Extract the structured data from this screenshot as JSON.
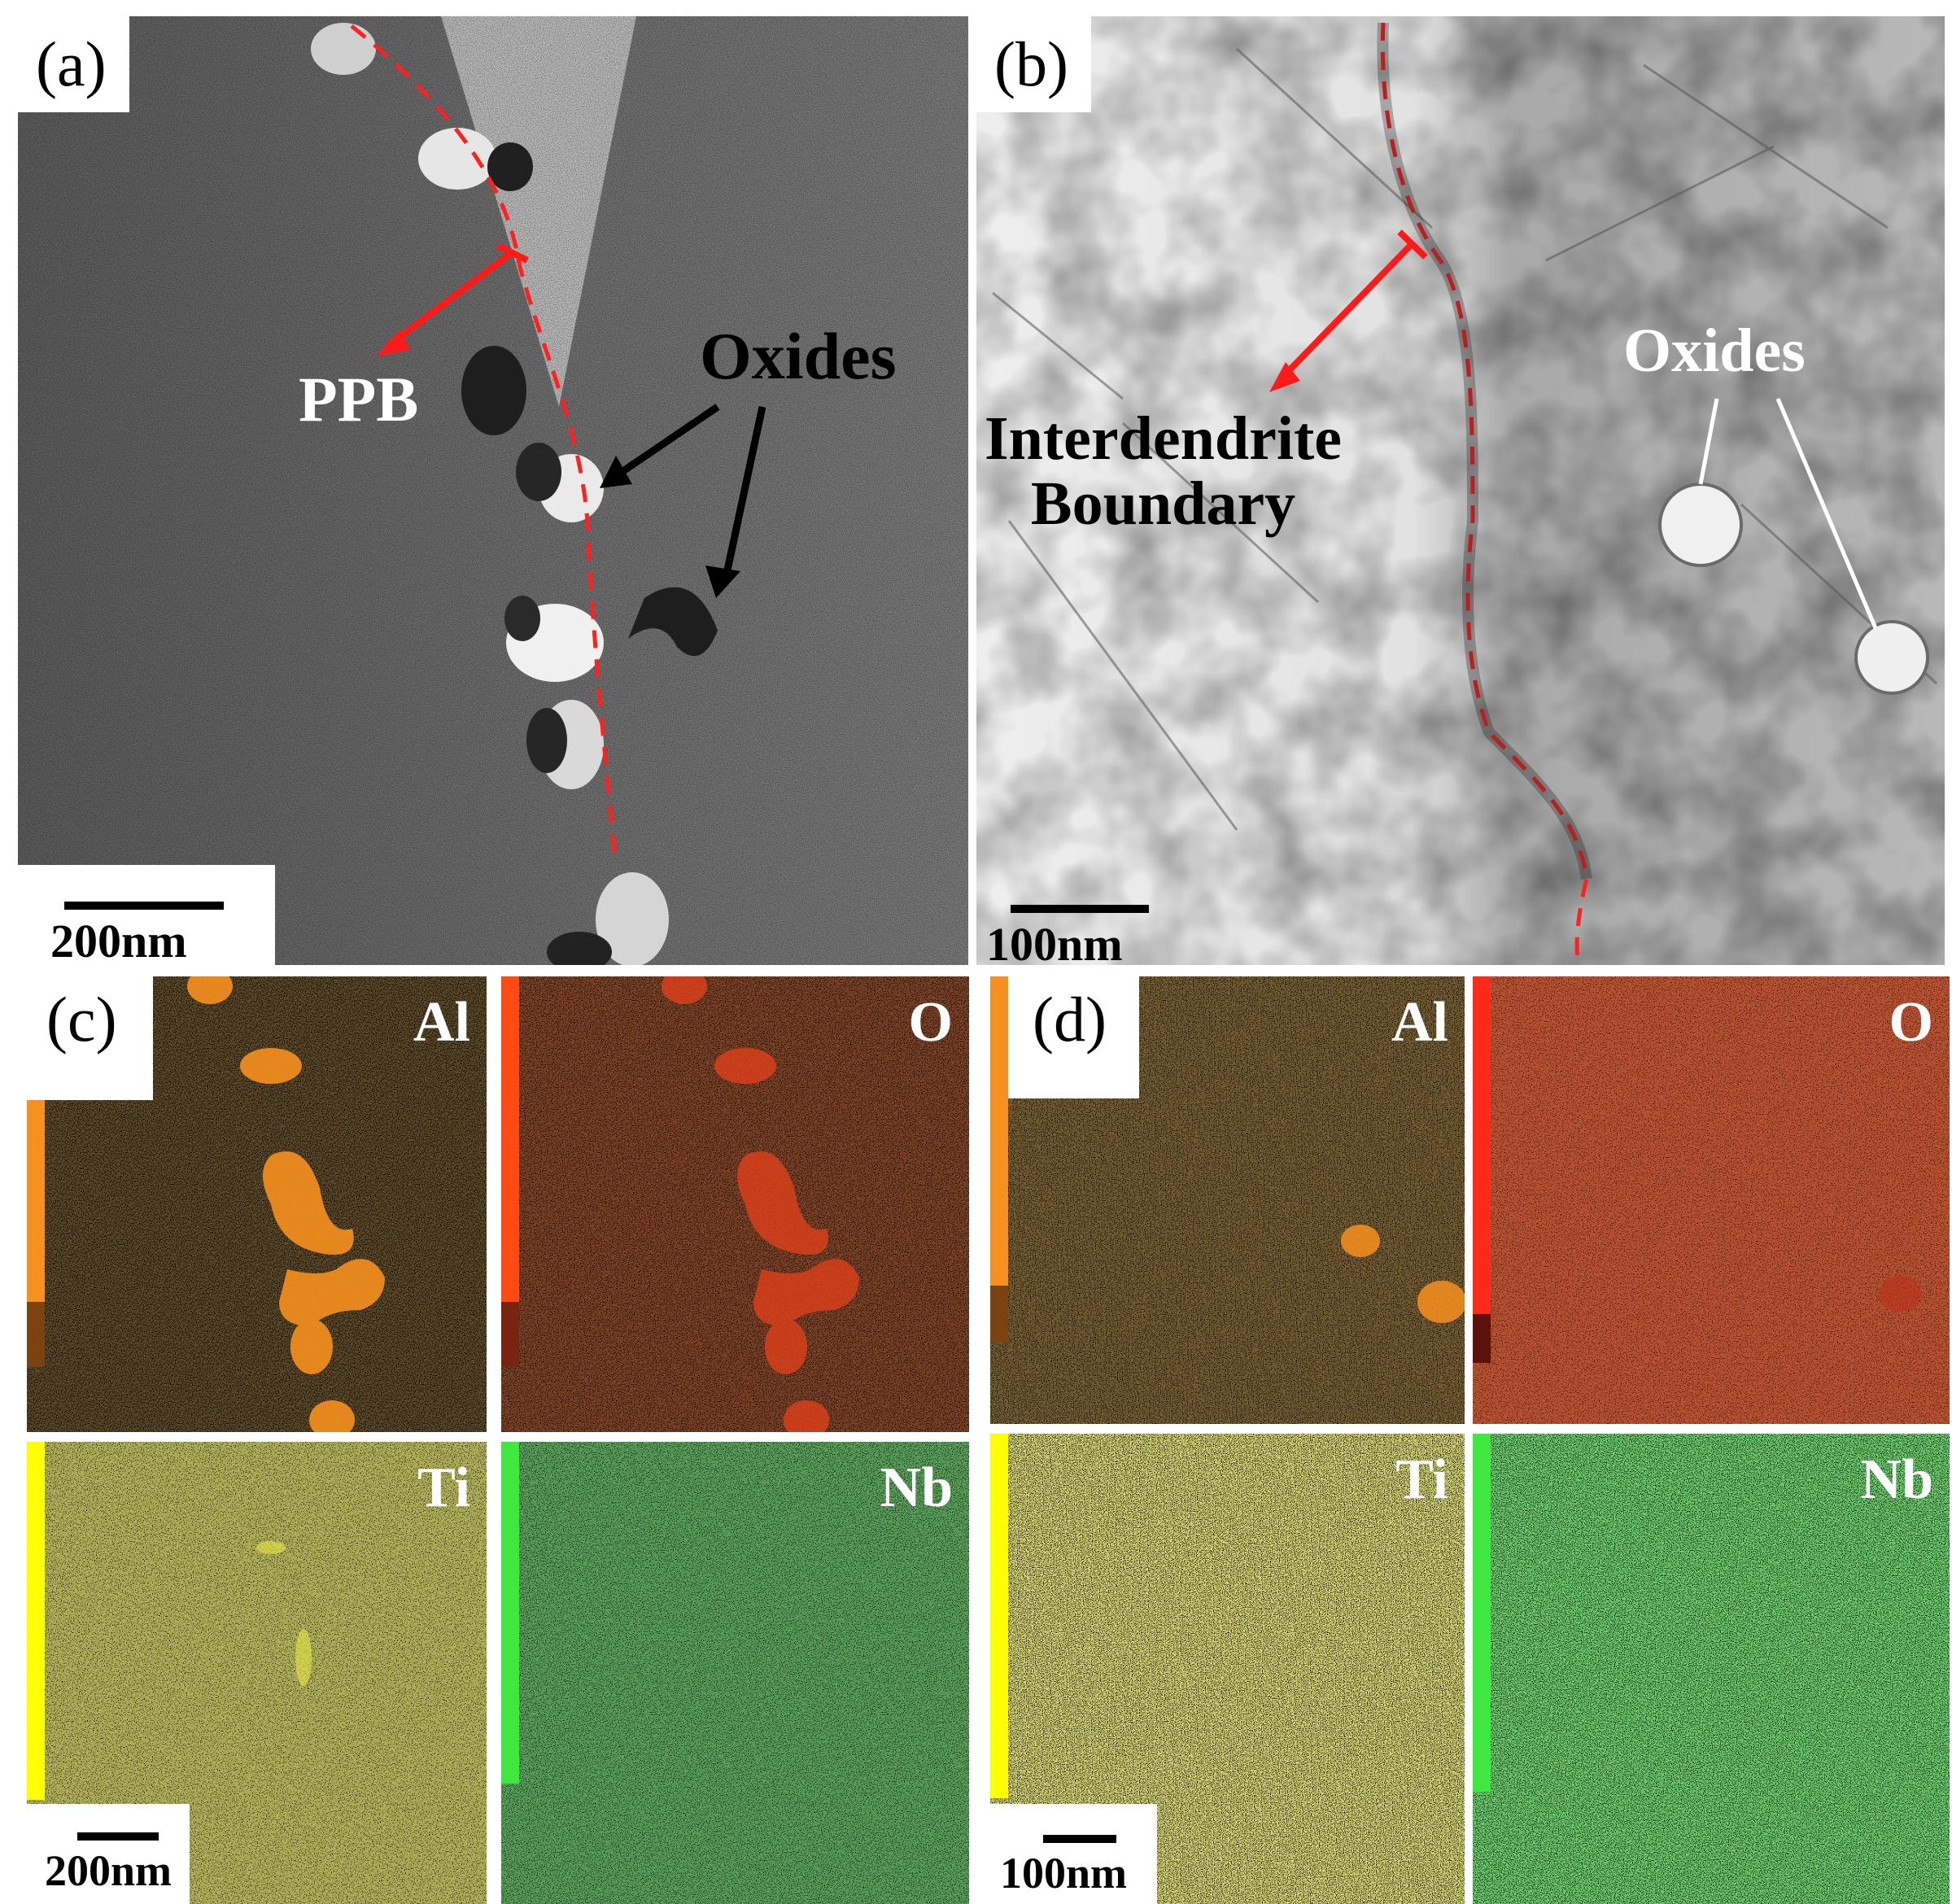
{
  "panels": {
    "a": {
      "letter": "(a)",
      "scale": "200nm",
      "labels": {
        "ppb": "PPB",
        "oxides": "Oxides"
      }
    },
    "b": {
      "letter": "(b)",
      "scale": "100nm",
      "labels": {
        "boundary_line1": "Interdendrite",
        "boundary_line2": "Boundary",
        "oxides": "Oxides"
      }
    },
    "c": {
      "letter": "(c)",
      "scale": "200nm",
      "maps": [
        "Al",
        "O",
        "Ti",
        "Nb"
      ]
    },
    "d": {
      "letter": "(d)",
      "scale": "100nm",
      "maps": [
        "Al",
        "O",
        "Ti",
        "Nb"
      ]
    }
  },
  "colors": {
    "Al": "#f7901e",
    "O": "#ff4a14",
    "Ti": "#ffff00",
    "Nb": "#3ee83e",
    "boundary_line": "#ff2020",
    "arrow_red": "#ff1a1a",
    "arrow_black": "#000000"
  }
}
